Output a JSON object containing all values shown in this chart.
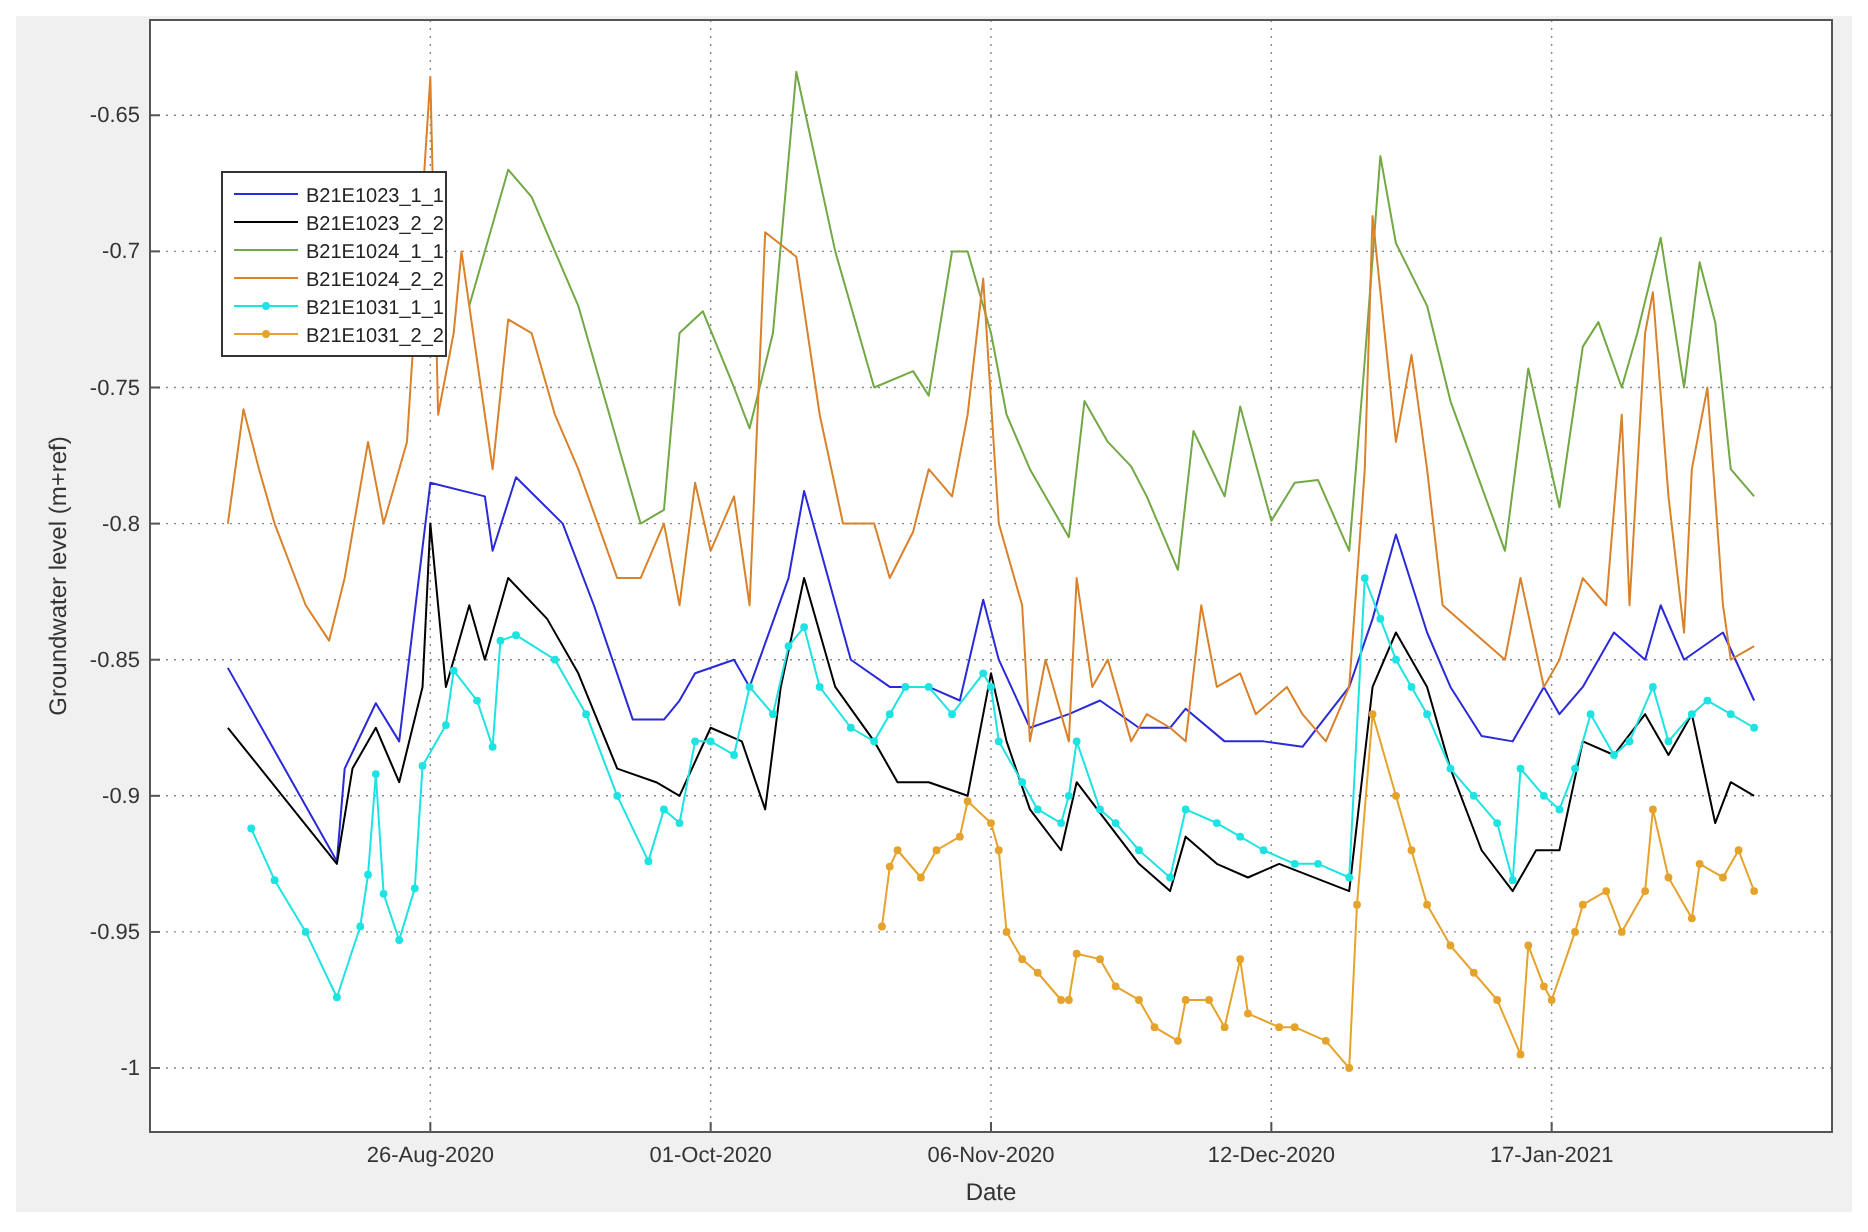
{
  "chart_data": {
    "type": "line",
    "xlabel": "Date",
    "ylabel": "Groundwater level (m+ref)",
    "xlim": [
      "2020-07-21",
      "2021-02-22"
    ],
    "ylim": [
      -1.0235,
      -0.615
    ],
    "xticks": [
      {
        "value": "2020-08-26",
        "label": "26-Aug-2020"
      },
      {
        "value": "2020-10-01",
        "label": "01-Oct-2020"
      },
      {
        "value": "2020-11-06",
        "label": "06-Nov-2020"
      },
      {
        "value": "2020-12-12",
        "label": "12-Dec-2020"
      },
      {
        "value": "2021-01-17",
        "label": "17-Jan-2021"
      }
    ],
    "yticks": [
      -1,
      -0.95,
      -0.9,
      -0.85,
      -0.8,
      -0.75,
      -0.7,
      -0.65
    ],
    "grid": true,
    "legend": "top left",
    "series": [
      {
        "name": "B21E1023_1_1",
        "color": "#2a2ad8",
        "x": [
          "2020-07-31",
          "2020-08-14",
          "2020-08-15",
          "2020-08-19",
          "2020-08-22",
          "2020-08-26",
          "2020-09-02",
          "2020-09-03",
          "2020-09-06",
          "2020-09-12",
          "2020-09-16",
          "2020-09-21",
          "2020-09-25",
          "2020-09-27",
          "2020-09-29",
          "2020-10-04",
          "2020-10-06",
          "2020-10-11",
          "2020-10-13",
          "2020-10-19",
          "2020-10-24",
          "2020-10-29",
          "2020-11-02",
          "2020-11-05",
          "2020-11-07",
          "2020-11-11",
          "2020-11-16",
          "2020-11-20",
          "2020-11-25",
          "2020-11-29",
          "2020-12-01",
          "2020-12-06",
          "2020-12-11",
          "2020-12-16",
          "2020-12-22",
          "2020-12-25",
          "2020-12-28",
          "2021-01-01",
          "2021-01-04",
          "2021-01-08",
          "2021-01-12",
          "2021-01-16",
          "2021-01-18",
          "2021-01-21",
          "2021-01-25",
          "2021-01-29",
          "2021-01-31",
          "2021-02-03",
          "2021-02-08",
          "2021-02-12"
        ],
        "values": [
          -0.853,
          -0.924,
          -0.89,
          -0.866,
          -0.88,
          -0.785,
          -0.79,
          -0.81,
          -0.783,
          -0.8,
          -0.83,
          -0.872,
          -0.872,
          -0.865,
          -0.855,
          -0.85,
          -0.86,
          -0.82,
          -0.788,
          -0.85,
          -0.86,
          -0.86,
          -0.865,
          -0.828,
          -0.85,
          -0.875,
          -0.87,
          -0.865,
          -0.875,
          -0.875,
          -0.868,
          -0.88,
          -0.88,
          -0.882,
          -0.86,
          -0.835,
          -0.804,
          -0.84,
          -0.86,
          -0.878,
          -0.88,
          -0.86,
          -0.87,
          -0.86,
          -0.84,
          -0.85,
          -0.83,
          -0.85,
          -0.84,
          -0.865
        ]
      },
      {
        "name": "B21E1023_2_2",
        "color": "#000000",
        "x": [
          "2020-07-31",
          "2020-08-14",
          "2020-08-16",
          "2020-08-19",
          "2020-08-22",
          "2020-08-25",
          "2020-08-26",
          "2020-08-28",
          "2020-08-31",
          "2020-09-02",
          "2020-09-05",
          "2020-09-10",
          "2020-09-14",
          "2020-09-19",
          "2020-09-24",
          "2020-09-27",
          "2020-10-01",
          "2020-10-05",
          "2020-10-08",
          "2020-10-10",
          "2020-10-13",
          "2020-10-17",
          "2020-10-22",
          "2020-10-25",
          "2020-10-29",
          "2020-11-03",
          "2020-11-06",
          "2020-11-08",
          "2020-11-11",
          "2020-11-15",
          "2020-11-17",
          "2020-11-21",
          "2020-11-25",
          "2020-11-29",
          "2020-12-01",
          "2020-12-05",
          "2020-12-09",
          "2020-12-13",
          "2020-12-22",
          "2020-12-25",
          "2020-12-28",
          "2021-01-01",
          "2021-01-04",
          "2021-01-08",
          "2021-01-12",
          "2021-01-15",
          "2021-01-18",
          "2021-01-21",
          "2021-01-25",
          "2021-01-29",
          "2021-02-01",
          "2021-02-04",
          "2021-02-07",
          "2021-02-09",
          "2021-02-12"
        ],
        "values": [
          -0.875,
          -0.925,
          -0.89,
          -0.875,
          -0.895,
          -0.86,
          -0.8,
          -0.86,
          -0.83,
          -0.85,
          -0.82,
          -0.835,
          -0.855,
          -0.89,
          -0.895,
          -0.9,
          -0.875,
          -0.88,
          -0.905,
          -0.86,
          -0.82,
          -0.86,
          -0.88,
          -0.895,
          -0.895,
          -0.9,
          -0.855,
          -0.88,
          -0.905,
          -0.92,
          -0.895,
          -0.91,
          -0.925,
          -0.935,
          -0.915,
          -0.925,
          -0.93,
          -0.925,
          -0.935,
          -0.86,
          -0.84,
          -0.86,
          -0.89,
          -0.92,
          -0.935,
          -0.92,
          -0.92,
          -0.88,
          -0.885,
          -0.87,
          -0.885,
          -0.87,
          -0.91,
          -0.895,
          -0.9
        ]
      },
      {
        "name": "B21E1024_1_1",
        "color": "#72a845",
        "x": [
          "2020-08-31",
          "2020-09-05",
          "2020-09-08",
          "2020-09-14",
          "2020-09-19",
          "2020-09-22",
          "2020-09-25",
          "2020-09-27",
          "2020-09-30",
          "2020-10-04",
          "2020-10-06",
          "2020-10-09",
          "2020-10-12",
          "2020-10-17",
          "2020-10-22",
          "2020-10-27",
          "2020-10-29",
          "2020-11-01",
          "2020-11-03",
          "2020-11-06",
          "2020-11-08",
          "2020-11-11",
          "2020-11-16",
          "2020-11-18",
          "2020-11-21",
          "2020-11-24",
          "2020-11-26",
          "2020-11-30",
          "2020-12-02",
          "2020-12-06",
          "2020-12-08",
          "2020-12-12",
          "2020-12-15",
          "2020-12-18",
          "2020-12-22",
          "2020-12-24",
          "2020-12-26",
          "2020-12-28",
          "2021-01-01",
          "2021-01-04",
          "2021-01-11",
          "2021-01-14",
          "2021-01-18",
          "2021-01-21",
          "2021-01-23",
          "2021-01-26",
          "2021-01-28",
          "2021-01-31",
          "2021-02-03",
          "2021-02-05",
          "2021-02-07",
          "2021-02-09",
          "2021-02-12"
        ],
        "values": [
          -0.72,
          -0.67,
          -0.68,
          -0.72,
          -0.77,
          -0.8,
          -0.795,
          -0.73,
          -0.722,
          -0.75,
          -0.765,
          -0.73,
          -0.634,
          -0.7,
          -0.75,
          -0.744,
          -0.753,
          -0.7,
          -0.7,
          -0.73,
          -0.76,
          -0.78,
          -0.805,
          -0.755,
          -0.77,
          -0.779,
          -0.79,
          -0.817,
          -0.766,
          -0.79,
          -0.757,
          -0.799,
          -0.785,
          -0.784,
          -0.81,
          -0.74,
          -0.665,
          -0.697,
          -0.72,
          -0.755,
          -0.81,
          -0.743,
          -0.794,
          -0.735,
          -0.726,
          -0.75,
          -0.73,
          -0.695,
          -0.75,
          -0.704,
          -0.726,
          -0.78,
          -0.79
        ]
      },
      {
        "name": "B21E1024_2_2",
        "color": "#d9822b",
        "x": [
          "2020-07-31",
          "2020-08-02",
          "2020-08-04",
          "2020-08-06",
          "2020-08-10",
          "2020-08-13",
          "2020-08-15",
          "2020-08-18",
          "2020-08-20",
          "2020-08-23",
          "2020-08-26",
          "2020-08-27",
          "2020-08-29",
          "2020-08-30",
          "2020-09-03",
          "2020-09-05",
          "2020-09-08",
          "2020-09-11",
          "2020-09-14",
          "2020-09-19",
          "2020-09-22",
          "2020-09-25",
          "2020-09-27",
          "2020-09-29",
          "2020-10-01",
          "2020-10-04",
          "2020-10-06",
          "2020-10-08",
          "2020-10-12",
          "2020-10-15",
          "2020-10-18",
          "2020-10-22",
          "2020-10-24",
          "2020-10-27",
          "2020-10-29",
          "2020-11-01",
          "2020-11-03",
          "2020-11-05",
          "2020-11-07",
          "2020-11-10",
          "2020-11-11",
          "2020-11-13",
          "2020-11-16",
          "2020-11-17",
          "2020-11-19",
          "2020-11-21",
          "2020-11-24",
          "2020-11-26",
          "2020-11-29",
          "2020-12-01",
          "2020-12-03",
          "2020-12-05",
          "2020-12-08",
          "2020-12-10",
          "2020-12-14",
          "2020-12-16",
          "2020-12-19",
          "2020-12-22",
          "2020-12-24",
          "2020-12-25",
          "2020-12-28",
          "2020-12-30",
          "2021-01-01",
          "2021-01-03",
          "2021-01-07",
          "2021-01-11",
          "2021-01-13",
          "2021-01-16",
          "2021-01-18",
          "2021-01-21",
          "2021-01-24",
          "2021-01-26",
          "2021-01-27",
          "2021-01-29",
          "2021-01-30",
          "2021-02-01",
          "2021-02-03",
          "2021-02-04",
          "2021-02-06",
          "2021-02-08",
          "2021-02-09",
          "2021-02-12"
        ],
        "values": [
          -0.8,
          -0.758,
          -0.78,
          -0.8,
          -0.83,
          -0.843,
          -0.82,
          -0.77,
          -0.8,
          -0.77,
          -0.636,
          -0.76,
          -0.73,
          -0.7,
          -0.78,
          -0.725,
          -0.73,
          -0.76,
          -0.78,
          -0.82,
          -0.82,
          -0.8,
          -0.83,
          -0.785,
          -0.81,
          -0.79,
          -0.83,
          -0.693,
          -0.702,
          -0.76,
          -0.8,
          -0.8,
          -0.82,
          -0.803,
          -0.78,
          -0.79,
          -0.76,
          -0.71,
          -0.8,
          -0.83,
          -0.88,
          -0.85,
          -0.88,
          -0.82,
          -0.86,
          -0.85,
          -0.88,
          -0.87,
          -0.875,
          -0.88,
          -0.83,
          -0.86,
          -0.855,
          -0.87,
          -0.86,
          -0.87,
          -0.88,
          -0.86,
          -0.78,
          -0.687,
          -0.77,
          -0.738,
          -0.78,
          -0.83,
          -0.84,
          -0.85,
          -0.82,
          -0.86,
          -0.85,
          -0.82,
          -0.83,
          -0.76,
          -0.83,
          -0.73,
          -0.715,
          -0.79,
          -0.84,
          -0.78,
          -0.75,
          -0.83,
          -0.85,
          -0.845
        ]
      },
      {
        "name": "B21E1031_1_1",
        "color": "#1ee3e3",
        "marker": "circle",
        "x": [
          "2020-08-03",
          "2020-08-06",
          "2020-08-10",
          "2020-08-14",
          "2020-08-17",
          "2020-08-18",
          "2020-08-19",
          "2020-08-20",
          "2020-08-22",
          "2020-08-24",
          "2020-08-25",
          "2020-08-28",
          "2020-08-29",
          "2020-09-01",
          "2020-09-03",
          "2020-09-04",
          "2020-09-06",
          "2020-09-11",
          "2020-09-15",
          "2020-09-19",
          "2020-09-23",
          "2020-09-25",
          "2020-09-27",
          "2020-09-29",
          "2020-10-01",
          "2020-10-04",
          "2020-10-06",
          "2020-10-09",
          "2020-10-11",
          "2020-10-13",
          "2020-10-15",
          "2020-10-19",
          "2020-10-22",
          "2020-10-24",
          "2020-10-26",
          "2020-10-29",
          "2020-11-01",
          "2020-11-05",
          "2020-11-06",
          "2020-11-07",
          "2020-11-10",
          "2020-11-12",
          "2020-11-15",
          "2020-11-16",
          "2020-11-17",
          "2020-11-20",
          "2020-11-22",
          "2020-11-25",
          "2020-11-29",
          "2020-12-01",
          "2020-12-05",
          "2020-12-08",
          "2020-12-11",
          "2020-12-15",
          "2020-12-18",
          "2020-12-22",
          "2020-12-24",
          "2020-12-26",
          "2020-12-28",
          "2020-12-30",
          "2021-01-01",
          "2021-01-04",
          "2021-01-07",
          "2021-01-10",
          "2021-01-12",
          "2021-01-13",
          "2021-01-16",
          "2021-01-18",
          "2021-01-20",
          "2021-01-22",
          "2021-01-25",
          "2021-01-27",
          "2021-01-30",
          "2021-02-01",
          "2021-02-04",
          "2021-02-06",
          "2021-02-09",
          "2021-02-12"
        ],
        "values": [
          -0.912,
          -0.931,
          -0.95,
          -0.974,
          -0.948,
          -0.929,
          -0.892,
          -0.936,
          -0.953,
          -0.934,
          -0.889,
          -0.874,
          -0.854,
          -0.865,
          -0.882,
          -0.843,
          -0.841,
          -0.85,
          -0.87,
          -0.9,
          -0.924,
          -0.905,
          -0.91,
          -0.88,
          -0.88,
          -0.885,
          -0.86,
          -0.87,
          -0.845,
          -0.838,
          -0.86,
          -0.875,
          -0.88,
          -0.87,
          -0.86,
          -0.86,
          -0.87,
          -0.855,
          -0.86,
          -0.88,
          -0.895,
          -0.905,
          -0.91,
          -0.9,
          -0.88,
          -0.905,
          -0.91,
          -0.92,
          -0.93,
          -0.905,
          -0.91,
          -0.915,
          -0.92,
          -0.925,
          -0.925,
          -0.93,
          -0.82,
          -0.835,
          -0.85,
          -0.86,
          -0.87,
          -0.89,
          -0.9,
          -0.91,
          -0.931,
          -0.89,
          -0.9,
          -0.905,
          -0.89,
          -0.87,
          -0.885,
          -0.88,
          -0.86,
          -0.88,
          -0.87,
          -0.865,
          -0.87,
          -0.875
        ]
      },
      {
        "name": "B21E1031_2_2",
        "color": "#e6a32c",
        "marker": "circle",
        "x": [
          "2020-10-23",
          "2020-10-24",
          "2020-10-25",
          "2020-10-28",
          "2020-10-30",
          "2020-11-02",
          "2020-11-03",
          "2020-11-06",
          "2020-11-07",
          "2020-11-08",
          "2020-11-10",
          "2020-11-12",
          "2020-11-15",
          "2020-11-16",
          "2020-11-17",
          "2020-11-20",
          "2020-11-22",
          "2020-11-25",
          "2020-11-27",
          "2020-11-30",
          "2020-12-01",
          "2020-12-04",
          "2020-12-06",
          "2020-12-08",
          "2020-12-09",
          "2020-12-13",
          "2020-12-15",
          "2020-12-19",
          "2020-12-22",
          "2020-12-23",
          "2020-12-25",
          "2020-12-28",
          "2020-12-30",
          "2021-01-01",
          "2021-01-04",
          "2021-01-07",
          "2021-01-10",
          "2021-01-13",
          "2021-01-14",
          "2021-01-16",
          "2021-01-17",
          "2021-01-20",
          "2021-01-21",
          "2021-01-24",
          "2021-01-26",
          "2021-01-29",
          "2021-01-30",
          "2021-02-01",
          "2021-02-04",
          "2021-02-05",
          "2021-02-08",
          "2021-02-10",
          "2021-02-12"
        ],
        "values": [
          -0.948,
          -0.926,
          -0.92,
          -0.93,
          -0.92,
          -0.915,
          -0.902,
          -0.91,
          -0.92,
          -0.95,
          -0.96,
          -0.965,
          -0.975,
          -0.975,
          -0.958,
          -0.96,
          -0.97,
          -0.975,
          -0.985,
          -0.99,
          -0.975,
          -0.975,
          -0.985,
          -0.96,
          -0.98,
          -0.985,
          -0.985,
          -0.99,
          -1.0,
          -0.94,
          -0.87,
          -0.9,
          -0.92,
          -0.94,
          -0.955,
          -0.965,
          -0.975,
          -0.995,
          -0.955,
          -0.97,
          -0.975,
          -0.95,
          -0.94,
          -0.935,
          -0.95,
          -0.935,
          -0.905,
          -0.93,
          -0.945,
          -0.925,
          -0.93,
          -0.92,
          -0.935
        ]
      }
    ]
  }
}
